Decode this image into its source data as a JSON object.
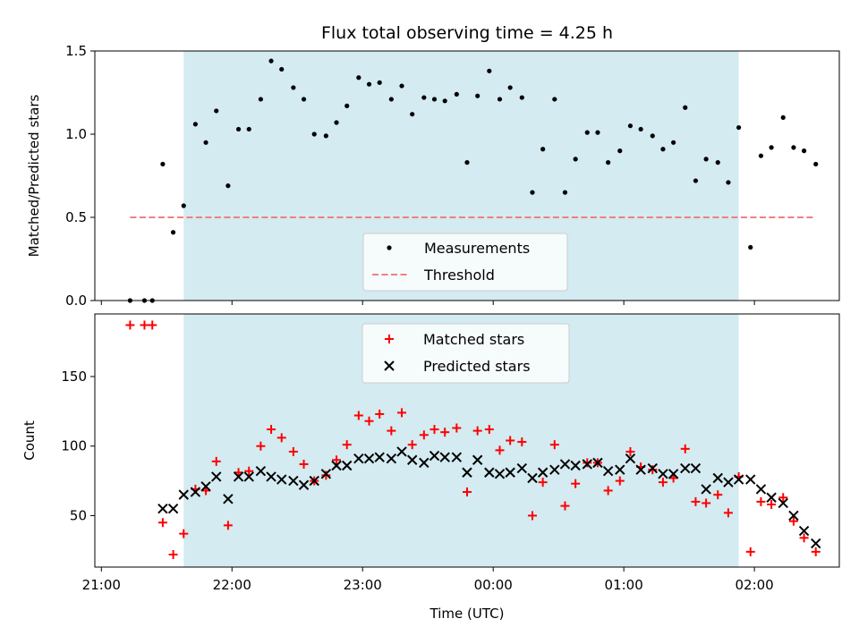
{
  "chart_data": [
    {
      "type": "scatter",
      "title": "Flux total observing time = 4.25 h",
      "ylabel": "Matched/Predicted stars",
      "ylim": [
        0,
        1.5
      ],
      "yticks": [
        "0.0",
        "0.5",
        "1.0",
        "1.5"
      ],
      "ytick_values": [
        0,
        0.5,
        1.0,
        1.5
      ],
      "xlim_hours": [
        20.95,
        26.65
      ],
      "xtick_hours": [
        21,
        22,
        23,
        24,
        25,
        26
      ],
      "shaded_span_hours": [
        21.63,
        25.88
      ],
      "legend_placement": "lower-center",
      "series": [
        {
          "name": "Measurements",
          "color": "#000000",
          "points": [
            [
              21.22,
              0.0
            ],
            [
              21.33,
              0.0
            ],
            [
              21.39,
              0.0
            ],
            [
              21.47,
              0.82
            ],
            [
              21.55,
              0.41
            ],
            [
              21.63,
              0.57
            ],
            [
              21.72,
              1.06
            ],
            [
              21.8,
              0.95
            ],
            [
              21.88,
              1.14
            ],
            [
              21.97,
              0.69
            ],
            [
              22.05,
              1.03
            ],
            [
              22.13,
              1.03
            ],
            [
              22.22,
              1.21
            ],
            [
              22.3,
              1.44
            ],
            [
              22.38,
              1.39
            ],
            [
              22.47,
              1.28
            ],
            [
              22.55,
              1.21
            ],
            [
              22.63,
              1.0
            ],
            [
              22.72,
              0.99
            ],
            [
              22.8,
              1.07
            ],
            [
              22.88,
              1.17
            ],
            [
              22.97,
              1.34
            ],
            [
              23.05,
              1.3
            ],
            [
              23.13,
              1.31
            ],
            [
              23.22,
              1.21
            ],
            [
              23.3,
              1.29
            ],
            [
              23.38,
              1.12
            ],
            [
              23.47,
              1.22
            ],
            [
              23.55,
              1.21
            ],
            [
              23.63,
              1.2
            ],
            [
              23.72,
              1.24
            ],
            [
              23.8,
              0.83
            ],
            [
              23.88,
              1.23
            ],
            [
              23.97,
              1.38
            ],
            [
              24.05,
              1.21
            ],
            [
              24.13,
              1.28
            ],
            [
              24.22,
              1.22
            ],
            [
              24.3,
              0.65
            ],
            [
              24.38,
              0.91
            ],
            [
              24.47,
              1.21
            ],
            [
              24.55,
              0.65
            ],
            [
              24.63,
              0.85
            ],
            [
              24.72,
              1.01
            ],
            [
              24.8,
              1.01
            ],
            [
              24.88,
              0.83
            ],
            [
              24.97,
              0.9
            ],
            [
              25.05,
              1.05
            ],
            [
              25.13,
              1.03
            ],
            [
              25.22,
              0.99
            ],
            [
              25.3,
              0.91
            ],
            [
              25.38,
              0.95
            ],
            [
              25.47,
              1.16
            ],
            [
              25.55,
              0.72
            ],
            [
              25.63,
              0.85
            ],
            [
              25.72,
              0.83
            ],
            [
              25.8,
              0.71
            ],
            [
              25.88,
              1.04
            ],
            [
              25.97,
              0.32
            ],
            [
              26.05,
              0.87
            ],
            [
              26.13,
              0.92
            ],
            [
              26.22,
              1.1
            ],
            [
              26.3,
              0.92
            ],
            [
              26.38,
              0.9
            ],
            [
              26.47,
              0.82
            ]
          ]
        },
        {
          "name": "Threshold",
          "color": "#f08080",
          "style": "dashed",
          "points": [
            [
              21.22,
              0.5
            ],
            [
              26.47,
              0.5
            ]
          ]
        }
      ]
    },
    {
      "type": "scatter",
      "xlabel": "Time (UTC)",
      "ylabel": "Count",
      "ylim": [
        13,
        195
      ],
      "yticks": [
        "50",
        "100",
        "150"
      ],
      "ytick_values": [
        50,
        100,
        150
      ],
      "xticks": [
        "21:00",
        "22:00",
        "23:00",
        "00:00",
        "01:00",
        "02:00"
      ],
      "xtick_hours": [
        21,
        22,
        23,
        24,
        25,
        26
      ],
      "xlim_hours": [
        20.95,
        26.65
      ],
      "shaded_span_hours": [
        21.63,
        25.88
      ],
      "legend_placement": "upper-center",
      "series": [
        {
          "name": "Matched stars",
          "color": "#ff0000",
          "marker": "plus",
          "points": [
            [
              21.22,
              187
            ],
            [
              21.33,
              187
            ],
            [
              21.39,
              187
            ],
            [
              21.47,
              45
            ],
            [
              21.55,
              22
            ],
            [
              21.63,
              37
            ],
            [
              21.72,
              69
            ],
            [
              21.8,
              68
            ],
            [
              21.88,
              89
            ],
            [
              21.97,
              43
            ],
            [
              22.05,
              81
            ],
            [
              22.13,
              82
            ],
            [
              22.22,
              100
            ],
            [
              22.3,
              112
            ],
            [
              22.38,
              106
            ],
            [
              22.47,
              96
            ],
            [
              22.55,
              87
            ],
            [
              22.63,
              75
            ],
            [
              22.72,
              79
            ],
            [
              22.8,
              90
            ],
            [
              22.88,
              101
            ],
            [
              22.97,
              122
            ],
            [
              23.05,
              118
            ],
            [
              23.13,
              123
            ],
            [
              23.22,
              111
            ],
            [
              23.3,
              124
            ],
            [
              23.38,
              101
            ],
            [
              23.47,
              108
            ],
            [
              23.55,
              112
            ],
            [
              23.63,
              110
            ],
            [
              23.72,
              113
            ],
            [
              23.8,
              67
            ],
            [
              23.88,
              111
            ],
            [
              23.97,
              112
            ],
            [
              24.05,
              97
            ],
            [
              24.13,
              104
            ],
            [
              24.22,
              103
            ],
            [
              24.3,
              50
            ],
            [
              24.38,
              74
            ],
            [
              24.47,
              101
            ],
            [
              24.55,
              57
            ],
            [
              24.63,
              73
            ],
            [
              24.72,
              88
            ],
            [
              24.8,
              88
            ],
            [
              24.88,
              68
            ],
            [
              24.97,
              75
            ],
            [
              25.05,
              96
            ],
            [
              25.13,
              85
            ],
            [
              25.22,
              83
            ],
            [
              25.3,
              74
            ],
            [
              25.38,
              77
            ],
            [
              25.47,
              98
            ],
            [
              25.55,
              60
            ],
            [
              25.63,
              59
            ],
            [
              25.72,
              65
            ],
            [
              25.8,
              52
            ],
            [
              25.88,
              78
            ],
            [
              25.97,
              24
            ],
            [
              26.05,
              60
            ],
            [
              26.13,
              58
            ],
            [
              26.22,
              63
            ],
            [
              26.3,
              46
            ],
            [
              26.38,
              34
            ],
            [
              26.47,
              24
            ]
          ]
        },
        {
          "name": "Predicted stars",
          "color": "#000000",
          "marker": "x",
          "points": [
            [
              21.47,
              55
            ],
            [
              21.55,
              55
            ],
            [
              21.63,
              65
            ],
            [
              21.72,
              67
            ],
            [
              21.8,
              71
            ],
            [
              21.88,
              78
            ],
            [
              21.97,
              62
            ],
            [
              22.05,
              78
            ],
            [
              22.13,
              78
            ],
            [
              22.22,
              82
            ],
            [
              22.3,
              78
            ],
            [
              22.38,
              76
            ],
            [
              22.47,
              75
            ],
            [
              22.55,
              72
            ],
            [
              22.63,
              75
            ],
            [
              22.72,
              80
            ],
            [
              22.8,
              86
            ],
            [
              22.88,
              86
            ],
            [
              22.97,
              91
            ],
            [
              23.05,
              91
            ],
            [
              23.13,
              92
            ],
            [
              23.22,
              91
            ],
            [
              23.3,
              96
            ],
            [
              23.38,
              90
            ],
            [
              23.47,
              88
            ],
            [
              23.55,
              93
            ],
            [
              23.63,
              92
            ],
            [
              23.72,
              92
            ],
            [
              23.8,
              81
            ],
            [
              23.88,
              90
            ],
            [
              23.97,
              81
            ],
            [
              24.05,
              80
            ],
            [
              24.13,
              81
            ],
            [
              24.22,
              84
            ],
            [
              24.3,
              77
            ],
            [
              24.38,
              81
            ],
            [
              24.47,
              83
            ],
            [
              24.55,
              87
            ],
            [
              24.63,
              86
            ],
            [
              24.72,
              87
            ],
            [
              24.8,
              88
            ],
            [
              24.88,
              82
            ],
            [
              24.97,
              83
            ],
            [
              25.05,
              91
            ],
            [
              25.13,
              83
            ],
            [
              25.22,
              84
            ],
            [
              25.3,
              80
            ],
            [
              25.38,
              80
            ],
            [
              25.47,
              84
            ],
            [
              25.55,
              84
            ],
            [
              25.63,
              69
            ],
            [
              25.72,
              77
            ],
            [
              25.8,
              74
            ],
            [
              25.88,
              76
            ],
            [
              25.97,
              76
            ],
            [
              26.05,
              69
            ],
            [
              26.13,
              63
            ],
            [
              26.22,
              59
            ],
            [
              26.3,
              50
            ],
            [
              26.38,
              39
            ],
            [
              26.47,
              30
            ]
          ]
        }
      ]
    }
  ],
  "colors": {
    "shade": "#d3ebf1",
    "frame": "#000000"
  }
}
